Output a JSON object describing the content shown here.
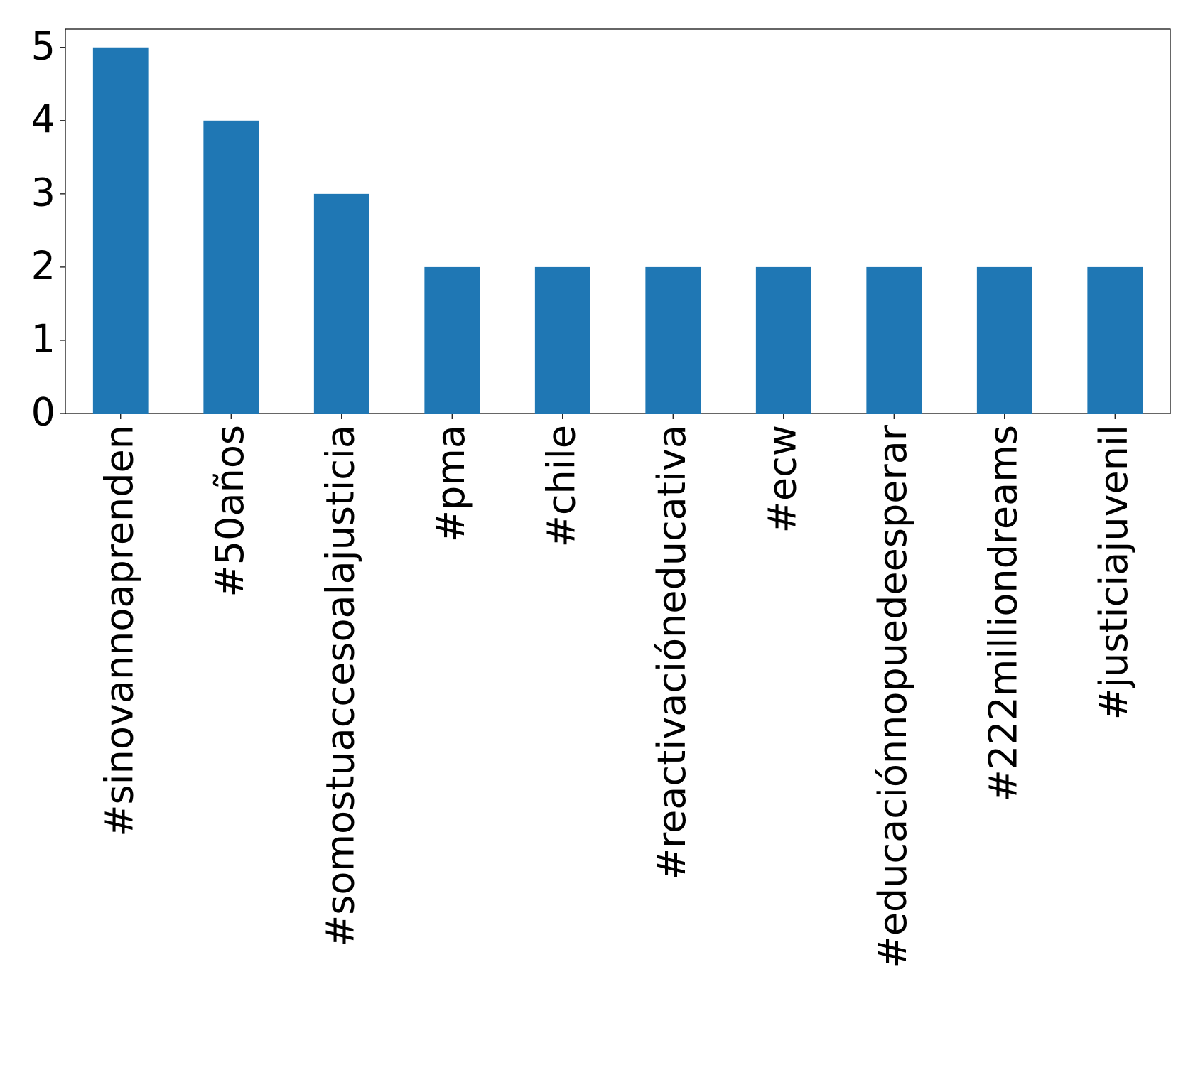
{
  "chart_data": {
    "type": "bar",
    "categories": [
      "#sinovannoaprenden",
      "#50años",
      "#somostuaccesoalajusticia",
      "#pma",
      "#chile",
      "#reactivacióneducativa",
      "#ecw",
      "#educaciónnopuedeesperar",
      "#222milliondreams",
      "#justiciajuvenil"
    ],
    "values": [
      5,
      4,
      3,
      2,
      2,
      2,
      2,
      2,
      2,
      2
    ],
    "color": "#1f77b4",
    "ylim": [
      0,
      5.25
    ],
    "yticks": [
      0,
      1,
      2,
      3,
      4,
      5
    ],
    "grid": false
  }
}
